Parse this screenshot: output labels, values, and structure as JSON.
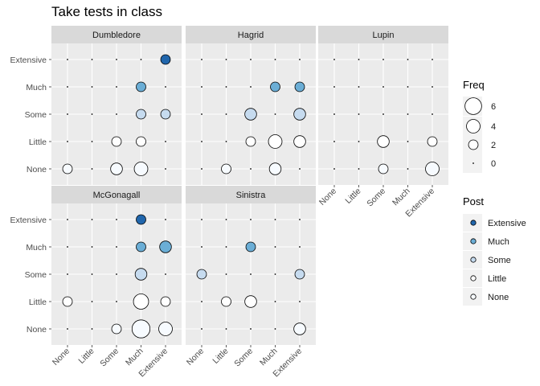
{
  "chart_data": {
    "type": "scatter",
    "title": "Take tests in class",
    "xlabel": "",
    "ylabel": "",
    "levels": [
      "None",
      "Little",
      "Some",
      "Much",
      "Extensive"
    ],
    "colors": {
      "None": "#f7fbff",
      "Little": "#ffffff",
      "Some": "#c6dbef",
      "Much": "#6baed6",
      "Extensive": "#2166ac"
    },
    "panels": [
      {
        "name": "Dumbledore",
        "cells": [
          {
            "x": "None",
            "y": "None",
            "freq": 2
          },
          {
            "x": "Some",
            "y": "None",
            "freq": 3
          },
          {
            "x": "Much",
            "y": "None",
            "freq": 4
          },
          {
            "x": "Some",
            "y": "Little",
            "freq": 2
          },
          {
            "x": "Much",
            "y": "Little",
            "freq": 2
          },
          {
            "x": "Much",
            "y": "Some",
            "freq": 2
          },
          {
            "x": "Extensive",
            "y": "Some",
            "freq": 2
          },
          {
            "x": "Much",
            "y": "Much",
            "freq": 2
          },
          {
            "x": "Extensive",
            "y": "Extensive",
            "freq": 2
          }
        ]
      },
      {
        "name": "Hagrid",
        "cells": [
          {
            "x": "Little",
            "y": "None",
            "freq": 2
          },
          {
            "x": "Much",
            "y": "None",
            "freq": 3
          },
          {
            "x": "Some",
            "y": "Little",
            "freq": 2
          },
          {
            "x": "Much",
            "y": "Little",
            "freq": 4
          },
          {
            "x": "Extensive",
            "y": "Little",
            "freq": 3
          },
          {
            "x": "Some",
            "y": "Some",
            "freq": 3
          },
          {
            "x": "Extensive",
            "y": "Some",
            "freq": 3
          },
          {
            "x": "Much",
            "y": "Much",
            "freq": 2
          },
          {
            "x": "Extensive",
            "y": "Much",
            "freq": 2
          }
        ]
      },
      {
        "name": "Lupin",
        "cells": [
          {
            "x": "Some",
            "y": "None",
            "freq": 2
          },
          {
            "x": "Extensive",
            "y": "None",
            "freq": 4
          },
          {
            "x": "Some",
            "y": "Little",
            "freq": 3
          },
          {
            "x": "Extensive",
            "y": "Little",
            "freq": 2
          }
        ]
      },
      {
        "name": "McGonagall",
        "cells": [
          {
            "x": "Some",
            "y": "None",
            "freq": 2
          },
          {
            "x": "Much",
            "y": "None",
            "freq": 7
          },
          {
            "x": "Extensive",
            "y": "None",
            "freq": 4
          },
          {
            "x": "None",
            "y": "Little",
            "freq": 2
          },
          {
            "x": "Much",
            "y": "Little",
            "freq": 5
          },
          {
            "x": "Extensive",
            "y": "Little",
            "freq": 2
          },
          {
            "x": "Much",
            "y": "Some",
            "freq": 3
          },
          {
            "x": "Much",
            "y": "Much",
            "freq": 2
          },
          {
            "x": "Extensive",
            "y": "Much",
            "freq": 3
          },
          {
            "x": "Much",
            "y": "Extensive",
            "freq": 2
          }
        ]
      },
      {
        "name": "Sinistra",
        "cells": [
          {
            "x": "Extensive",
            "y": "None",
            "freq": 3
          },
          {
            "x": "Little",
            "y": "Little",
            "freq": 2
          },
          {
            "x": "Some",
            "y": "Little",
            "freq": 3
          },
          {
            "x": "None",
            "y": "Some",
            "freq": 2
          },
          {
            "x": "Extensive",
            "y": "Some",
            "freq": 2
          },
          {
            "x": "Some",
            "y": "Much",
            "freq": 2
          }
        ]
      }
    ],
    "legend": {
      "size_title": "Freq",
      "size_breaks": [
        6,
        4,
        2,
        0
      ],
      "color_title": "Post",
      "color_levels": [
        "Extensive",
        "Much",
        "Some",
        "Little",
        "None"
      ],
      "placement": "right"
    },
    "grid": true
  }
}
